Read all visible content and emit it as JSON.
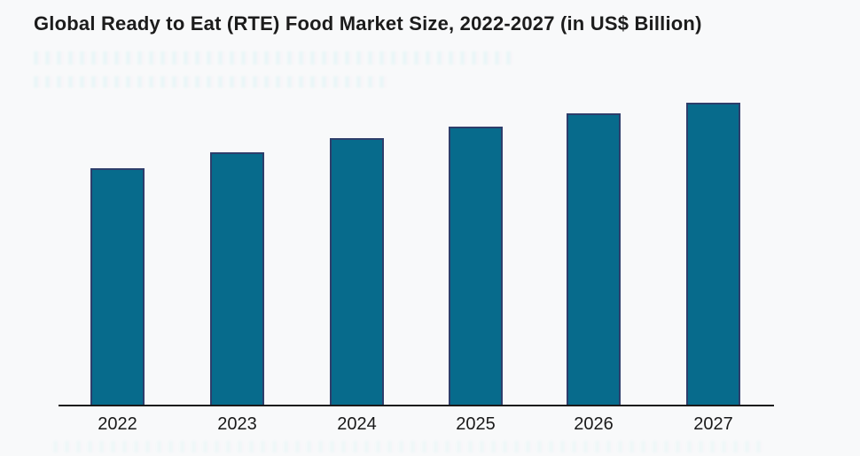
{
  "page": {
    "background_color": "#f8f9fa"
  },
  "chart_data": {
    "type": "bar",
    "title": "Global Ready to Eat (RTE) Food Market Size, 2022-2027 (in US$ Billion)",
    "categories": [
      "2022",
      "2023",
      "2024",
      "2025",
      "2026",
      "2027"
    ],
    "values": [
      268,
      286,
      302,
      315,
      330,
      342
    ],
    "value_scale": "relative bar heights in pixels; chart shows no y-axis, gridlines, or data labels",
    "units_hint": "US$ Billion (from title)",
    "xlabel": "",
    "ylabel": "",
    "ylim": [
      0,
      360
    ],
    "grid": false,
    "legend": false,
    "colors": {
      "bar_fill": "#076b8c",
      "bar_border": "#2e3e6b",
      "axis_line": "#1a1a1a",
      "title_text": "#1c1c1c",
      "tick_text": "#1a1a1a"
    }
  }
}
